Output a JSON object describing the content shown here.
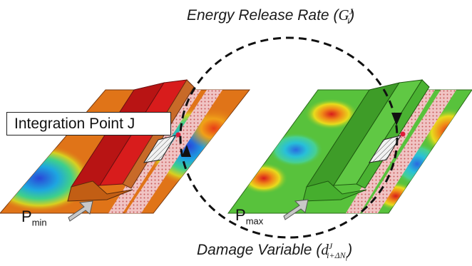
{
  "caption_top": {
    "text": "Energy Release Rate (",
    "sym": "G",
    "sup": "J",
    "sub": "i",
    "close": ")"
  },
  "caption_bottom": {
    "text": "Damage Variable (",
    "sym": "d",
    "sup": "J",
    "sub": "i+ΔN",
    "subsub": "i",
    "close": ")"
  },
  "integration_label": "Integration Point J",
  "load_min": {
    "base": "P",
    "sub": "min"
  },
  "load_max": {
    "base": "P",
    "sub": "max"
  },
  "colors": {
    "left_plate": "#e07418",
    "left_ridge": "#d41c1c",
    "right_plate": "#58c23c",
    "right_ridge": "#4cb232",
    "hatch": "#e8a8a8",
    "marker": "#dd1c38",
    "arrow": "#c8c8c8"
  }
}
